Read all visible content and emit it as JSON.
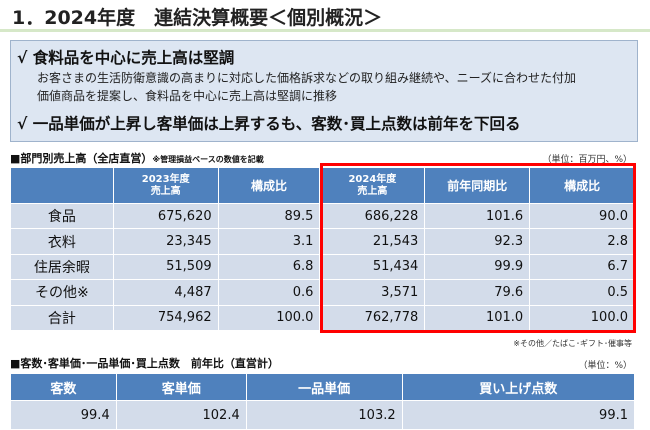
{
  "title": "1．2024年度　連結決算概要＜個別概況＞",
  "summary": {
    "point1": "√ 食料品を中心に売上高は堅調",
    "detail1a": "お客さまの生活防衛意識の高まりに対応した価格訴求などの取り組み継続や、ニーズに合わせた付加",
    "detail1b": "価値商品を提案し、食料品を中心に売上高は堅調に推移",
    "point2": "√ 一品単価が上昇し客単価は上昇するも、客数･買上点数は前年を下回る"
  },
  "dept": {
    "heading": "■部門別売上高（全店直営）",
    "heading_note": "※管理損益ベースの数値を記載",
    "unit": "（単位：百万円、%）",
    "headers": [
      "",
      "2023年度\n売上高",
      "構成比",
      "2024年度\n売上高",
      "前年同期比",
      "構成比"
    ],
    "rows": [
      [
        "食品",
        "675,620",
        "89.5",
        "686,228",
        "101.6",
        "90.0"
      ],
      [
        "衣料",
        "23,345",
        "3.1",
        "21,543",
        "92.3",
        "2.8"
      ],
      [
        "住居余暇",
        "51,509",
        "6.8",
        "51,434",
        "99.9",
        "6.7"
      ],
      [
        "その他※",
        "4,487",
        "0.6",
        "3,571",
        "79.6",
        "0.5"
      ],
      [
        "合計",
        "754,962",
        "100.0",
        "762,778",
        "101.0",
        "100.0"
      ]
    ],
    "footnote": "※その他／たばこ･ギフト･催事等",
    "highlight_color": "#ff0000"
  },
  "kpi": {
    "heading": "■客数･客単価･一品単価･買上点数　前年比（直営計）",
    "unit": "（単位：%）",
    "headers": [
      "客数",
      "客単価",
      "一品単価",
      "買い上げ点数"
    ],
    "values": [
      "99.4",
      "102.4",
      "103.2",
      "99.1"
    ]
  }
}
